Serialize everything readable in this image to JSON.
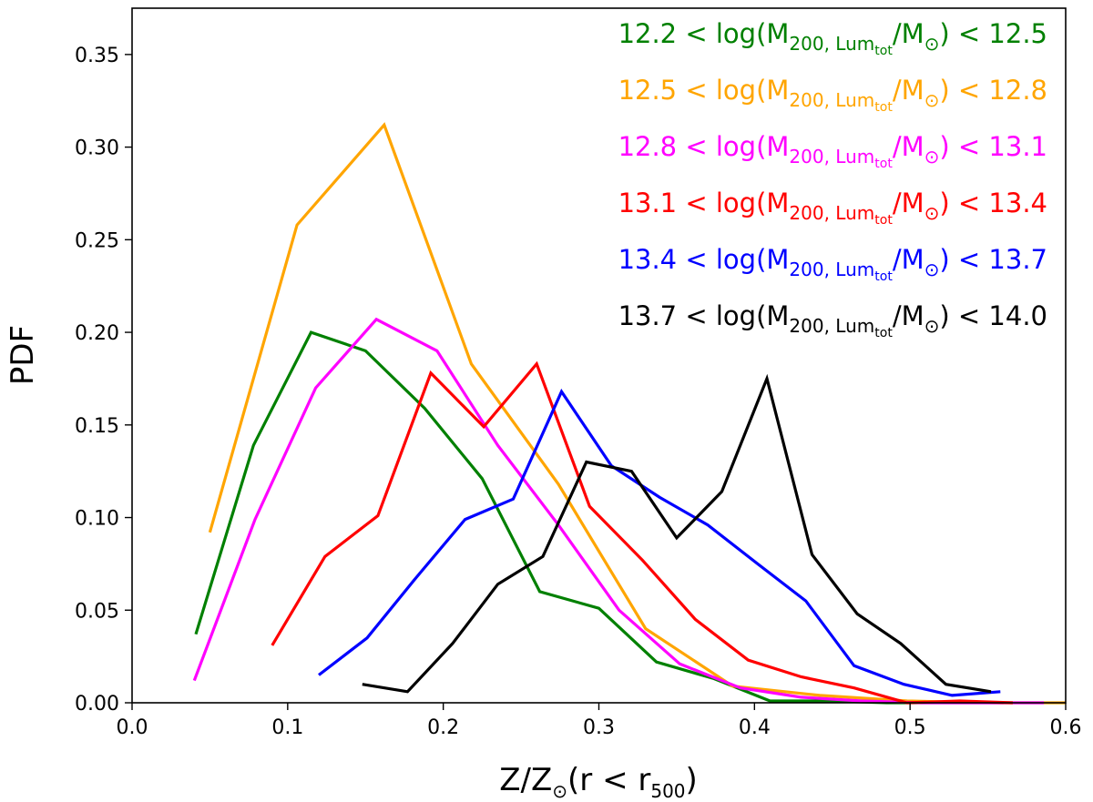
{
  "chart_data": {
    "type": "line",
    "xlabel": {
      "main": "Z/Z",
      "sun": "⊙",
      "rest": "(r < r",
      "sub": "500",
      "close": ")"
    },
    "ylabel": "PDF",
    "xlim": [
      0.0,
      0.6
    ],
    "ylim": [
      0.0,
      0.375
    ],
    "xticks": [
      0.0,
      0.1,
      0.2,
      0.3,
      0.4,
      0.5,
      0.6
    ],
    "xtick_labels": [
      "0.0",
      "0.1",
      "0.2",
      "0.3",
      "0.4",
      "0.5",
      "0.6"
    ],
    "yticks": [
      0.0,
      0.05,
      0.1,
      0.15,
      0.2,
      0.25,
      0.3,
      0.35
    ],
    "ytick_labels": [
      "0.00",
      "0.05",
      "0.10",
      "0.15",
      "0.20",
      "0.25",
      "0.30",
      "0.35"
    ],
    "grid": false,
    "legend_position": "top-right",
    "series": [
      {
        "name": "12.2 < log(M200,Lumtot/M⊙) < 12.5",
        "label": {
          "lo": "12.2",
          "hi": "12.5"
        },
        "color": "#008000",
        "x": [
          0.041,
          0.078,
          0.115,
          0.15,
          0.188,
          0.225,
          0.262,
          0.3,
          0.337,
          0.374,
          0.41,
          0.448,
          0.485,
          0.522,
          0.56
        ],
        "y": [
          0.037,
          0.139,
          0.2,
          0.19,
          0.159,
          0.121,
          0.06,
          0.051,
          0.022,
          0.013,
          0.001,
          0.001,
          0.0,
          0.0,
          0.0
        ]
      },
      {
        "name": "12.5 < log(M200,Lumtot/M⊙) < 12.8",
        "label": {
          "lo": "12.5",
          "hi": "12.8"
        },
        "color": "#FFA500",
        "x": [
          0.05,
          0.106,
          0.162,
          0.218,
          0.274,
          0.33,
          0.386,
          0.442,
          0.498,
          0.554,
          0.6
        ],
        "y": [
          0.092,
          0.258,
          0.312,
          0.183,
          0.118,
          0.04,
          0.009,
          0.004,
          0.001,
          0.0,
          0.0
        ]
      },
      {
        "name": "12.8 < log(M200,Lumtot/M⊙) < 13.1",
        "label": {
          "lo": "12.8",
          "hi": "13.1"
        },
        "color": "#FF00FF",
        "x": [
          0.04,
          0.079,
          0.118,
          0.157,
          0.196,
          0.235,
          0.274,
          0.313,
          0.352,
          0.391,
          0.43,
          0.469,
          0.508,
          0.547,
          0.586
        ],
        "y": [
          0.012,
          0.099,
          0.17,
          0.207,
          0.19,
          0.139,
          0.096,
          0.05,
          0.021,
          0.008,
          0.003,
          0.001,
          0.0,
          0.0,
          0.0
        ]
      },
      {
        "name": "13.1 < log(M200,Lumtot/M⊙) < 13.4",
        "label": {
          "lo": "13.1",
          "hi": "13.4"
        },
        "color": "#FF0000",
        "x": [
          0.09,
          0.124,
          0.158,
          0.192,
          0.226,
          0.26,
          0.294,
          0.328,
          0.362,
          0.396,
          0.43,
          0.464,
          0.498,
          0.532,
          0.566
        ],
        "y": [
          0.031,
          0.079,
          0.101,
          0.178,
          0.149,
          0.183,
          0.106,
          0.077,
          0.045,
          0.023,
          0.014,
          0.008,
          0.0,
          0.001,
          0.0
        ]
      },
      {
        "name": "13.4 < log(M200,Lumtot/M⊙) < 13.7",
        "label": {
          "lo": "13.4",
          "hi": "13.7"
        },
        "color": "#0000FF",
        "x": [
          0.12,
          0.151,
          0.182,
          0.214,
          0.245,
          0.276,
          0.308,
          0.339,
          0.37,
          0.402,
          0.433,
          0.464,
          0.496,
          0.527,
          0.558
        ],
        "y": [
          0.015,
          0.035,
          0.067,
          0.099,
          0.11,
          0.168,
          0.128,
          0.111,
          0.096,
          0.075,
          0.055,
          0.02,
          0.01,
          0.004,
          0.006
        ]
      },
      {
        "name": "13.7 < log(M200,Lumtot/M⊙) < 14.0",
        "label": {
          "lo": "13.7",
          "hi": "14.0"
        },
        "color": "#000000",
        "x": [
          0.148,
          0.177,
          0.206,
          0.235,
          0.264,
          0.292,
          0.321,
          0.35,
          0.379,
          0.408,
          0.437,
          0.466,
          0.494,
          0.523,
          0.552
        ],
        "y": [
          0.01,
          0.006,
          0.032,
          0.064,
          0.079,
          0.13,
          0.125,
          0.089,
          0.114,
          0.175,
          0.08,
          0.048,
          0.032,
          0.01,
          0.006
        ]
      }
    ]
  }
}
